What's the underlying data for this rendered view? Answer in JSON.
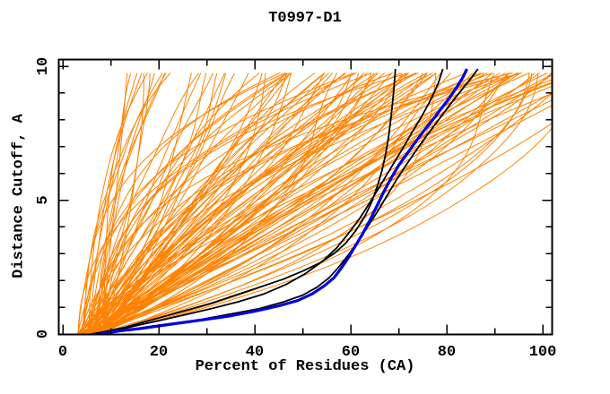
{
  "chart_data": {
    "type": "line",
    "title": "T0997-D1",
    "xlabel": "Percent of Residues (CA)",
    "ylabel": "Distance Cutoff, A",
    "xlim": [
      -2,
      102
    ],
    "ylim": [
      0,
      10.3
    ],
    "grid": false,
    "legend": null,
    "background_color": "#ffffff",
    "axis_color": "#000000",
    "x_ticks_major": [
      0,
      20,
      40,
      60,
      80,
      100
    ],
    "x_tick_labels": [
      "0",
      "20",
      "40",
      "60",
      "80",
      "100"
    ],
    "x_ticks_minor": [
      10,
      30,
      50,
      70,
      90
    ],
    "y_ticks_major": [
      0,
      5,
      10
    ],
    "y_tick_labels": [
      "0",
      "5",
      "10"
    ],
    "y_ticks_minor": [
      1,
      2,
      3,
      4,
      6,
      7,
      8,
      9
    ],
    "tick_style": "inward-all-sides",
    "series": [
      {
        "name": "model-ensemble",
        "role": "background-ensemble",
        "render": "procedural",
        "description": "~120 GDT-style cumulative distance-cutoff curves for predicted models, fanning from (≈4-9, 0) up to cutoff 9.9 with endpoints spread between ≈14% and >100% of residues",
        "count": 120,
        "seed": 1234567,
        "color": "#ff8200",
        "line_width": 1,
        "x_start_range": [
          3,
          9
        ],
        "x_end_range": [
          13,
          116
        ],
        "y_end": 9.9
      },
      {
        "name": "reference-curve-steep",
        "color": "#000000",
        "line_width": 1.8,
        "points": [
          [
            6,
            0
          ],
          [
            9,
            0.1
          ],
          [
            13,
            0.25
          ],
          [
            17,
            0.45
          ],
          [
            21,
            0.65
          ],
          [
            26,
            0.9
          ],
          [
            31,
            1.15
          ],
          [
            36,
            1.45
          ],
          [
            41,
            1.75
          ],
          [
            46,
            2.05
          ],
          [
            50,
            2.35
          ],
          [
            53.5,
            2.65
          ],
          [
            56.5,
            3.0
          ],
          [
            59,
            3.4
          ],
          [
            61,
            3.85
          ],
          [
            62.8,
            4.35
          ],
          [
            64.3,
            4.9
          ],
          [
            65.5,
            5.5
          ],
          [
            66.5,
            6.1
          ],
          [
            67.3,
            6.75
          ],
          [
            67.9,
            7.4
          ],
          [
            68.4,
            8.1
          ],
          [
            68.8,
            8.8
          ],
          [
            69.1,
            9.4
          ],
          [
            69.3,
            9.9
          ]
        ]
      },
      {
        "name": "reference-curve-mid",
        "color": "#000000",
        "line_width": 1.8,
        "points": [
          [
            7,
            0
          ],
          [
            10.5,
            0.12
          ],
          [
            15,
            0.3
          ],
          [
            20,
            0.5
          ],
          [
            25.5,
            0.72
          ],
          [
            31,
            0.95
          ],
          [
            36.5,
            1.2
          ],
          [
            42,
            1.5
          ],
          [
            46.5,
            1.85
          ],
          [
            50.5,
            2.25
          ],
          [
            54,
            2.7
          ],
          [
            57,
            3.2
          ],
          [
            59.5,
            3.75
          ],
          [
            62,
            4.35
          ],
          [
            64.3,
            5.0
          ],
          [
            66.5,
            5.65
          ],
          [
            68.7,
            6.3
          ],
          [
            70.9,
            6.95
          ],
          [
            73,
            7.6
          ],
          [
            75,
            8.2
          ],
          [
            76.8,
            8.8
          ],
          [
            78.2,
            9.35
          ],
          [
            79.2,
            9.9
          ]
        ]
      },
      {
        "name": "reference-curve-wide",
        "color": "#000000",
        "line_width": 1.8,
        "points": [
          [
            8.5,
            0
          ],
          [
            12,
            0.1
          ],
          [
            17,
            0.25
          ],
          [
            23,
            0.4
          ],
          [
            29,
            0.55
          ],
          [
            35,
            0.75
          ],
          [
            41,
            0.95
          ],
          [
            46,
            1.2
          ],
          [
            50,
            1.45
          ],
          [
            53,
            1.75
          ],
          [
            55.5,
            2.1
          ],
          [
            57.5,
            2.5
          ],
          [
            59.5,
            2.95
          ],
          [
            61.5,
            3.45
          ],
          [
            63.5,
            4.0
          ],
          [
            65.5,
            4.55
          ],
          [
            67.5,
            5.15
          ],
          [
            69.5,
            5.75
          ],
          [
            71.5,
            6.3
          ],
          [
            73.8,
            6.9
          ],
          [
            76,
            7.45
          ],
          [
            78.3,
            8.0
          ],
          [
            80.6,
            8.55
          ],
          [
            82.8,
            9.05
          ],
          [
            84.8,
            9.5
          ],
          [
            86.5,
            9.9
          ]
        ]
      },
      {
        "name": "highlighted-model-curve",
        "color": "#0000e0",
        "line_width": 3.2,
        "points": [
          [
            7.5,
            0
          ],
          [
            11,
            0.1
          ],
          [
            16,
            0.2
          ],
          [
            22,
            0.35
          ],
          [
            28,
            0.5
          ],
          [
            34,
            0.65
          ],
          [
            40,
            0.85
          ],
          [
            45,
            1.05
          ],
          [
            49,
            1.25
          ],
          [
            52,
            1.5
          ],
          [
            54.5,
            1.8
          ],
          [
            56.5,
            2.1
          ],
          [
            58,
            2.45
          ],
          [
            59.5,
            2.85
          ],
          [
            61,
            3.3
          ],
          [
            62.5,
            3.75
          ],
          [
            64,
            4.25
          ],
          [
            65.5,
            4.8
          ],
          [
            67,
            5.35
          ],
          [
            68.5,
            5.85
          ],
          [
            70,
            6.3
          ],
          [
            71.8,
            6.75
          ],
          [
            73.6,
            7.2
          ],
          [
            75.5,
            7.65
          ],
          [
            77.3,
            8.05
          ],
          [
            79,
            8.45
          ],
          [
            80.7,
            8.85
          ],
          [
            82.2,
            9.25
          ],
          [
            83.4,
            9.6
          ],
          [
            84.2,
            9.9
          ]
        ]
      }
    ]
  }
}
